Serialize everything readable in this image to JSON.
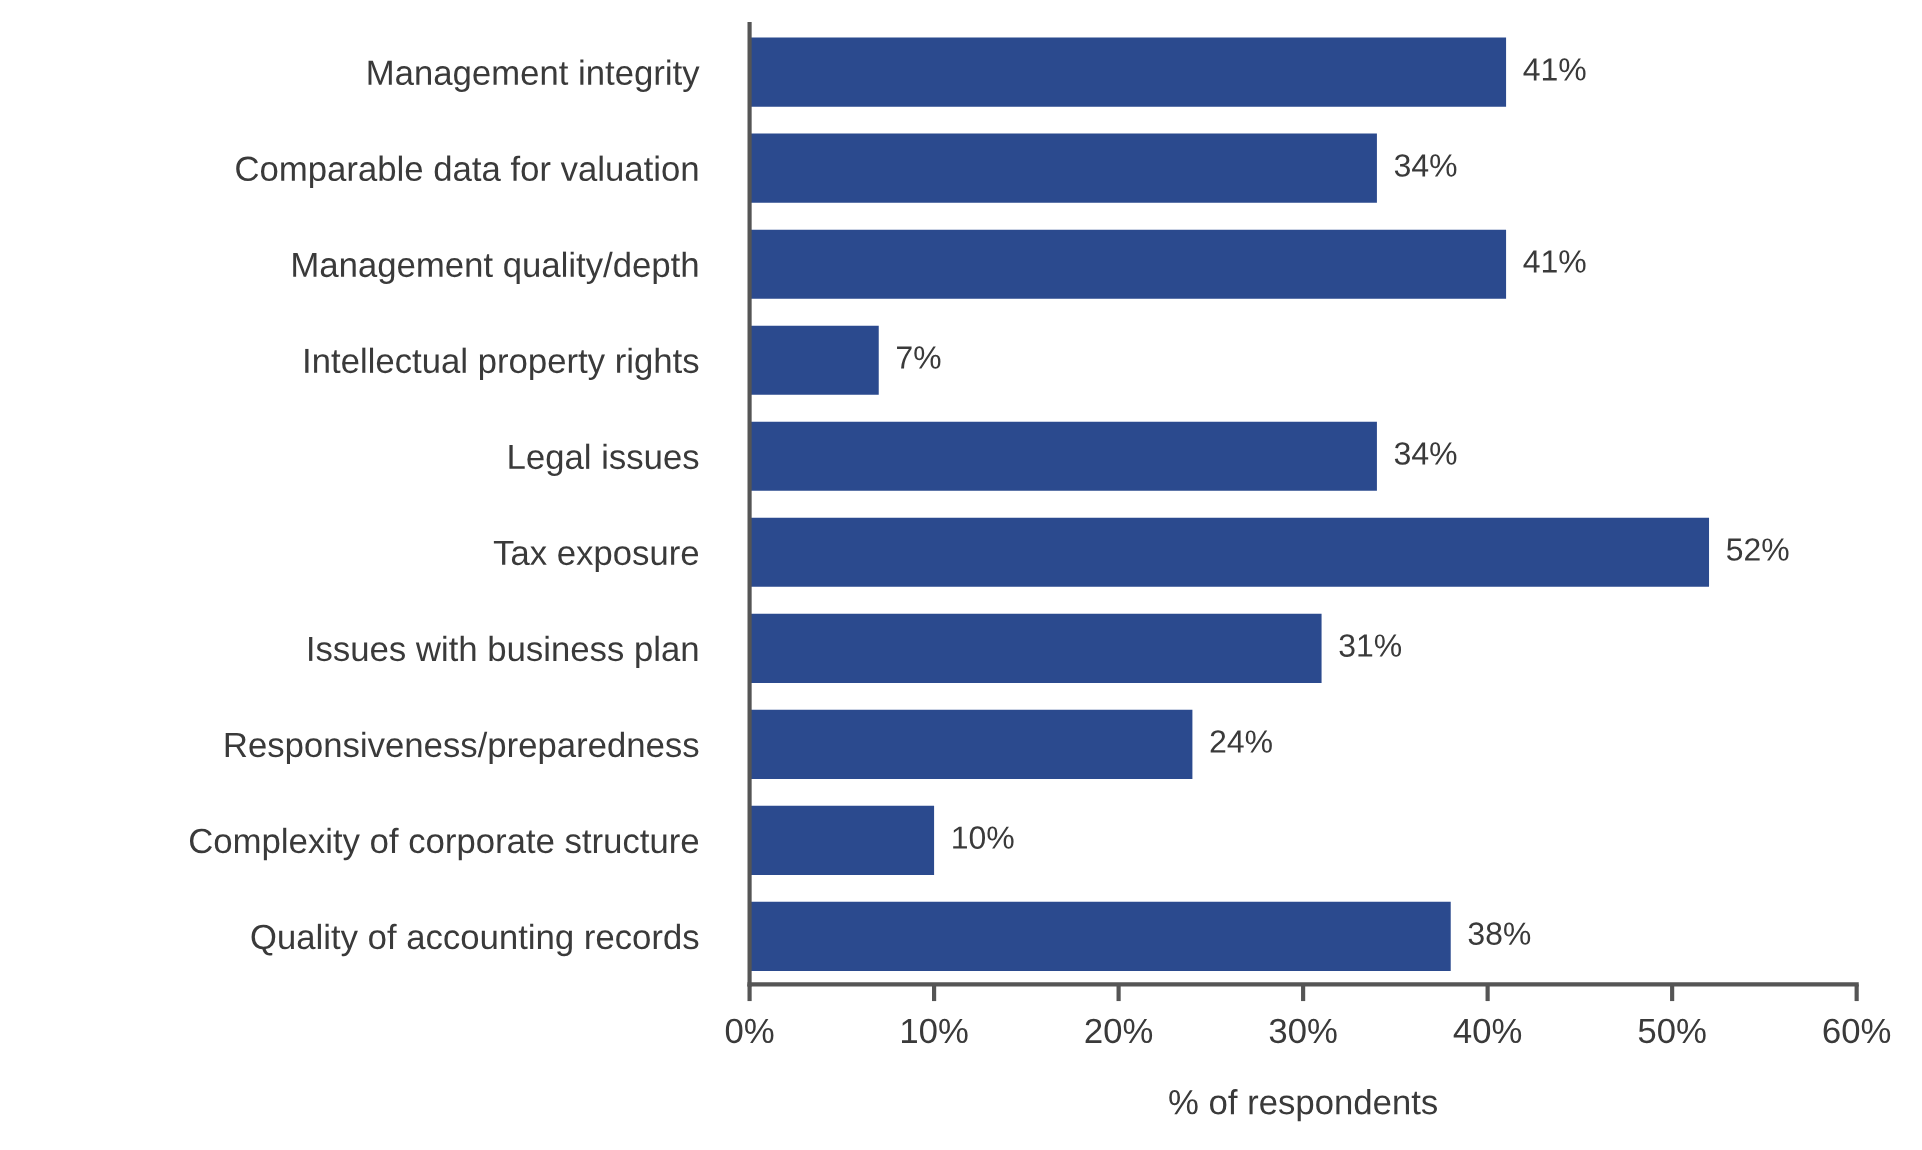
{
  "chart_data": {
    "type": "bar",
    "orientation": "horizontal",
    "xlabel": "% of respondents",
    "categories": [
      "Management integrity",
      "Comparable data for valuation",
      "Management quality/depth",
      "Intellectual property rights",
      "Legal issues",
      "Tax exposure",
      "Issues with business plan",
      "Responsiveness/preparedness",
      "Complexity of corporate structure",
      "Quality of accounting records"
    ],
    "values": [
      41,
      34,
      41,
      7,
      34,
      52,
      31,
      24,
      10,
      38
    ],
    "value_labels": [
      "41%",
      "34%",
      "41%",
      "7%",
      "34%",
      "52%",
      "31%",
      "24%",
      "10%",
      "38%"
    ],
    "color": "#2b4a8e",
    "xlim": [
      0,
      60
    ],
    "xticks": [
      {
        "value": 0,
        "label": "0%"
      },
      {
        "value": 10,
        "label": "10%"
      },
      {
        "value": 20,
        "label": "20%"
      },
      {
        "value": 30,
        "label": "30%"
      },
      {
        "value": 40,
        "label": "40%"
      },
      {
        "value": 50,
        "label": "50%"
      },
      {
        "value": 60,
        "label": "60%"
      }
    ],
    "grid": false,
    "legend": false
  }
}
